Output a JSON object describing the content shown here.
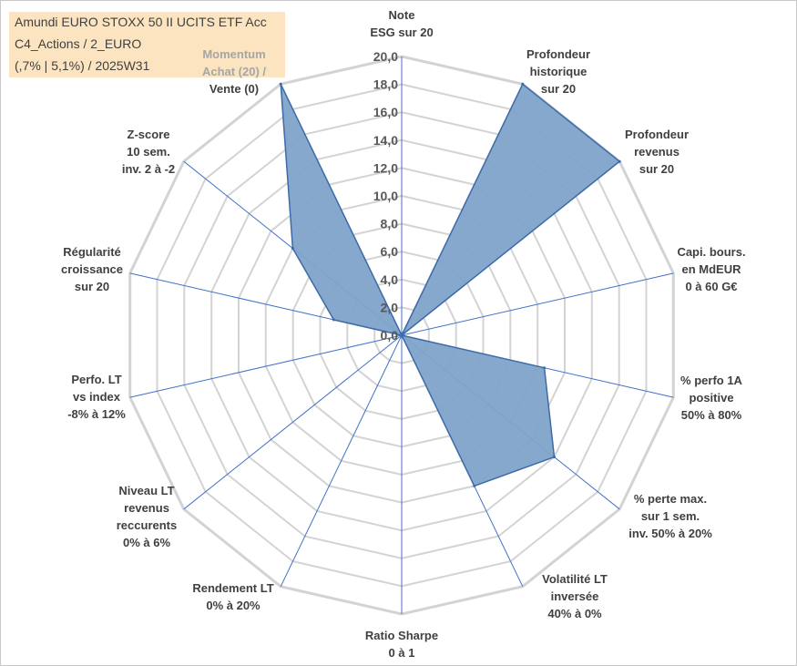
{
  "title_box": {
    "line1": "Amundi EURO STOXX 50 II UCITS ETF Acc",
    "line2": "C4_Actions / 2_EURO",
    "line3": "(,7% | 5,1%) / 2025W31"
  },
  "chart_data": {
    "type": "radar",
    "title": "Amundi EURO STOXX 50 II UCITS ETF Acc",
    "rmin": 0,
    "rmax": 20,
    "tick_step": 2,
    "tick_labels": [
      "0,0",
      "2,0",
      "4,0",
      "6,0",
      "8,0",
      "10,0",
      "12,0",
      "14,0",
      "16,0",
      "18,0",
      "20,0"
    ],
    "grid": true,
    "axes": [
      {
        "label": [
          "Note",
          "ESG sur 20"
        ],
        "value": 0
      },
      {
        "label": [
          "Profondeur",
          "historique",
          "sur 20"
        ],
        "value": 20
      },
      {
        "label": [
          "Profondeur",
          "revenus",
          "sur 20"
        ],
        "value": 20
      },
      {
        "label": [
          "Capi. bours.",
          "en MdEUR",
          "0 à 60 G€"
        ],
        "value": 0
      },
      {
        "label": [
          "% perfo 1A",
          "positive",
          "50% à 80%"
        ],
        "value": 10.5
      },
      {
        "label": [
          "% perte max.",
          "sur 1 sem.",
          "inv. 50% à 20%"
        ],
        "value": 14
      },
      {
        "label": [
          "Volatilité LT",
          "inversée",
          "40% à 0%"
        ],
        "value": 12
      },
      {
        "label": [
          "Ratio Sharpe",
          "0 à 1"
        ],
        "value": 0
      },
      {
        "label": [
          "Rendement LT",
          "0% à 20%"
        ],
        "value": 0
      },
      {
        "label": [
          "Niveau LT",
          "revenus",
          "reccurents",
          "0% à 6%"
        ],
        "value": 0
      },
      {
        "label": [
          "Perfo. LT",
          "vs index",
          "-8% à 12%"
        ],
        "value": 0
      },
      {
        "label": [
          "Régularité",
          "croissance",
          "sur 20"
        ],
        "value": 5
      },
      {
        "label": [
          "Z-score",
          "10 sem.",
          "inv. 2 à -2"
        ],
        "value": 10
      },
      {
        "label": [
          "Momentum",
          "Achat (20) /",
          "Vente (0)"
        ],
        "value": 20
      }
    ],
    "series": [
      {
        "values": [
          0,
          20,
          20,
          0,
          10.5,
          14,
          12,
          0,
          0,
          0,
          0,
          5,
          10,
          20
        ]
      }
    ],
    "colors": {
      "fill": "#7fa3c9",
      "stroke": "#3d6aa8",
      "grid": "#d3d3d3",
      "spoke": "#4472c4"
    }
  }
}
